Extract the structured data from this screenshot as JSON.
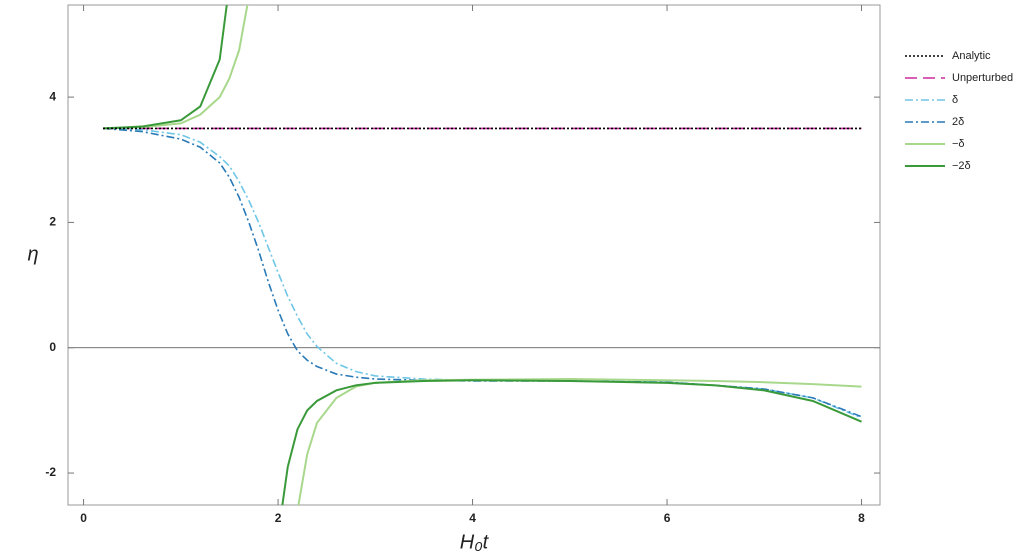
{
  "chart_data": {
    "type": "line",
    "xlabel": "H₀t",
    "ylabel": "η",
    "x": [
      0.2,
      0.6,
      1.0,
      1.2,
      1.4,
      1.5,
      1.6,
      1.7,
      1.8,
      1.9,
      2.0,
      2.1,
      2.2,
      2.3,
      2.4,
      2.6,
      2.8,
      3.0,
      3.5,
      4,
      5,
      6,
      6.5,
      7,
      7.5,
      8
    ],
    "series": [
      {
        "name": "Analytic",
        "color": "#000000",
        "dash": "dotted",
        "values": [
          3.5,
          3.5,
          3.5,
          3.5,
          3.5,
          3.5,
          3.5,
          3.5,
          3.5,
          3.5,
          3.5,
          3.5,
          3.5,
          3.5,
          3.5,
          3.5,
          3.5,
          3.5,
          3.5,
          3.5,
          3.5,
          3.5,
          3.5,
          3.5,
          3.5,
          3.5
        ]
      },
      {
        "name": "Unperturbed",
        "color": "#cc2a9a",
        "dash": "dashed",
        "values": [
          3.5,
          3.5,
          3.5,
          3.5,
          3.5,
          3.5,
          3.5,
          3.5,
          3.5,
          3.5,
          3.5,
          3.5,
          3.5,
          3.5,
          3.5,
          3.5,
          3.5,
          3.5,
          3.5,
          3.5,
          3.5,
          3.5,
          3.5,
          3.5,
          3.5,
          3.5
        ]
      },
      {
        "name": "δ",
        "color": "#6ec6e6",
        "dash": "dashdot",
        "values": [
          3.5,
          3.48,
          3.4,
          3.28,
          3.05,
          2.9,
          2.65,
          2.35,
          2.0,
          1.6,
          1.2,
          0.82,
          0.5,
          0.22,
          0.02,
          -0.25,
          -0.38,
          -0.45,
          -0.5,
          -0.52,
          -0.53,
          -0.55,
          -0.6,
          -0.66,
          -0.8,
          -1.12
        ]
      },
      {
        "name": "2δ",
        "color": "#2a7ab8",
        "dash": "dashdot",
        "values": [
          3.5,
          3.45,
          3.33,
          3.2,
          2.95,
          2.72,
          2.4,
          2.0,
          1.55,
          1.05,
          0.6,
          0.22,
          -0.05,
          -0.2,
          -0.3,
          -0.42,
          -0.47,
          -0.5,
          -0.52,
          -0.53,
          -0.53,
          -0.55,
          -0.6,
          -0.66,
          -0.8,
          -1.1
        ]
      },
      {
        "name": "−δ",
        "color": "#a8d88c",
        "dash": "solid",
        "values": [
          3.5,
          3.52,
          3.58,
          3.72,
          4.0,
          4.3,
          4.75,
          5.6,
          null,
          null,
          null,
          null,
          -2.6,
          -1.7,
          -1.2,
          -0.8,
          -0.62,
          -0.56,
          -0.52,
          -0.51,
          -0.5,
          -0.52,
          -0.53,
          -0.55,
          -0.58,
          -0.62
        ]
      },
      {
        "name": "−2δ",
        "color": "#3a9a3a",
        "dash": "solid",
        "values": [
          3.5,
          3.53,
          3.63,
          3.85,
          4.6,
          5.8,
          null,
          null,
          null,
          null,
          -3.0,
          -1.9,
          -1.3,
          -1.0,
          -0.85,
          -0.68,
          -0.6,
          -0.56,
          -0.53,
          -0.52,
          -0.53,
          -0.56,
          -0.6,
          -0.68,
          -0.85,
          -1.18
        ]
      }
    ],
    "xlim": [
      -0.16,
      8.19
    ],
    "ylim": [
      -2.51,
      5.47
    ],
    "xticks": [
      0,
      2,
      4,
      6,
      8
    ],
    "yticks": [
      -2,
      0,
      2,
      4
    ],
    "zero_line": true,
    "legend": "right"
  }
}
